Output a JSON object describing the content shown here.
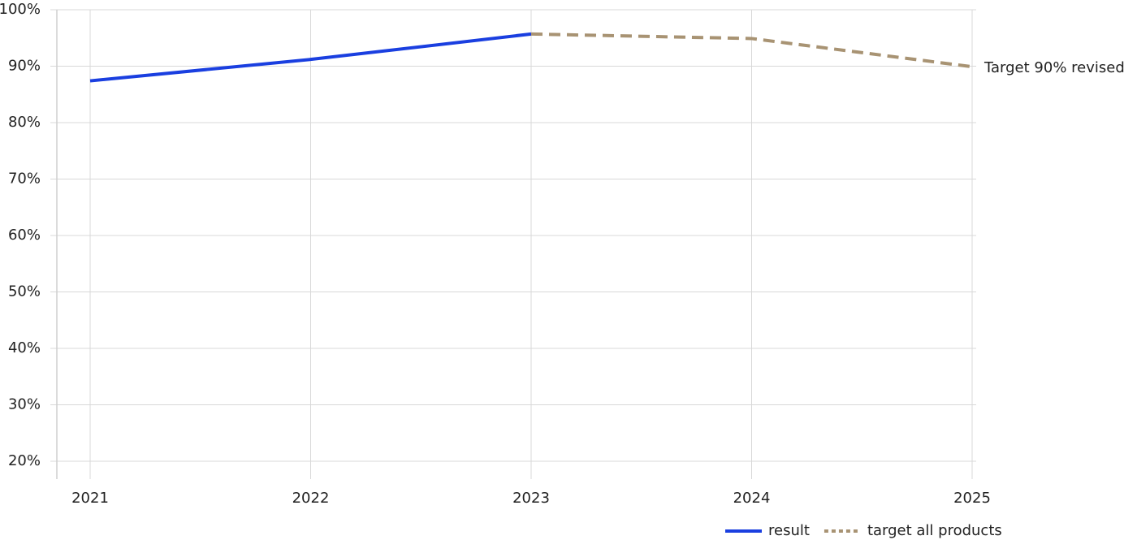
{
  "chart_data": {
    "type": "line",
    "categories": [
      "2021",
      "2022",
      "2023",
      "2024",
      "2025"
    ],
    "series": [
      {
        "name": "result",
        "color": "#1a3fe0",
        "style": "solid",
        "values": [
          87.4,
          91.2,
          95.7,
          null,
          null
        ]
      },
      {
        "name": "target all products",
        "color": "#a89373",
        "style": "dashed",
        "values": [
          null,
          null,
          95.7,
          94.9,
          89.9
        ]
      }
    ],
    "ylim": [
      20,
      100
    ],
    "yticks": [
      {
        "value": 20,
        "label": "20%"
      },
      {
        "value": 30,
        "label": "30%"
      },
      {
        "value": 40,
        "label": "40%"
      },
      {
        "value": 50,
        "label": "50%"
      },
      {
        "value": 60,
        "label": "60%"
      },
      {
        "value": 70,
        "label": "70%"
      },
      {
        "value": 80,
        "label": "80%"
      },
      {
        "value": 90,
        "label": "90%"
      },
      {
        "value": 100,
        "label": "100%"
      }
    ],
    "grid": true,
    "legend": "bottom-right",
    "annotations": [
      {
        "text": "Target 90% revised",
        "series": 1,
        "index": 4
      }
    ]
  }
}
